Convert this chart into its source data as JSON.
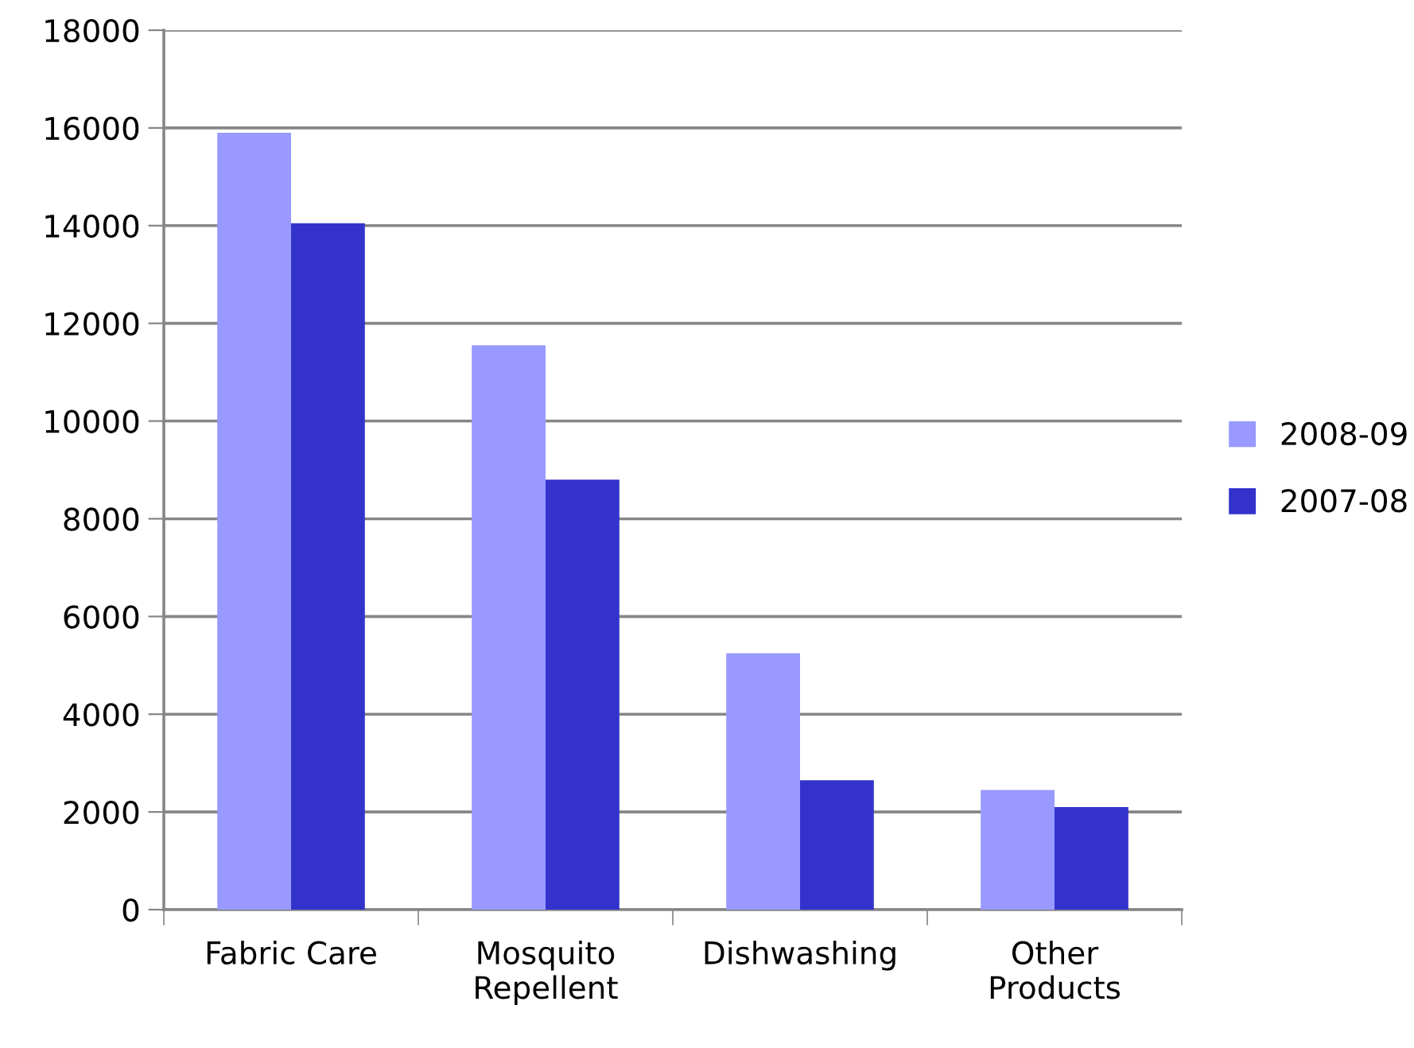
{
  "chart_data": {
    "type": "bar",
    "categories": [
      "Fabric Care",
      "Mosquito\nRepellent",
      "Dishwashing",
      "Other\nProducts"
    ],
    "series": [
      {
        "name": "2008-09",
        "color": "#9999ff",
        "values": [
          15900,
          11550,
          5250,
          2450
        ]
      },
      {
        "name": "2007-08",
        "color": "#3333cc",
        "values": [
          14050,
          8800,
          2650,
          2100
        ]
      }
    ],
    "ylim": [
      0,
      18000
    ],
    "yticks": [
      0,
      2000,
      4000,
      6000,
      8000,
      10000,
      12000,
      14000,
      16000,
      18000
    ],
    "grid": "y",
    "legend": "right"
  }
}
